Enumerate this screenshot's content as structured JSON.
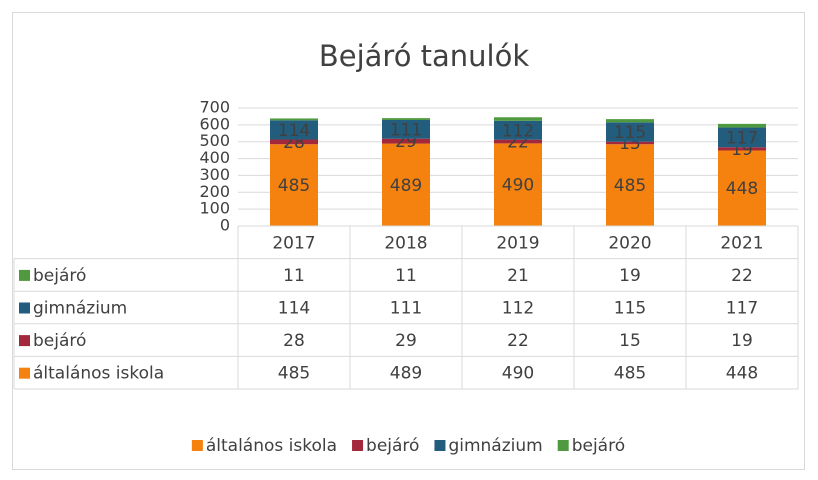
{
  "chart_data": {
    "type": "bar",
    "stacked": true,
    "title": "Bejáró tanulók",
    "categories": [
      "2017",
      "2018",
      "2019",
      "2020",
      "2021"
    ],
    "series": [
      {
        "name": "általános iskola",
        "color": "#f5820f",
        "values": [
          485,
          489,
          490,
          485,
          448
        ]
      },
      {
        "name": "bejáró",
        "color": "#a3283b",
        "values": [
          28,
          29,
          22,
          15,
          19
        ]
      },
      {
        "name": "gimnázium",
        "color": "#235d7e",
        "values": [
          114,
          111,
          112,
          115,
          117
        ]
      },
      {
        "name": "bejáró",
        "color": "#4f9a3f",
        "values": [
          11,
          11,
          21,
          19,
          22
        ]
      }
    ],
    "ylim": [
      0,
      700
    ],
    "yticks": [
      0,
      100,
      200,
      300,
      400,
      500,
      600,
      700
    ],
    "grid": true,
    "data_table": true,
    "legend": "bottom"
  }
}
